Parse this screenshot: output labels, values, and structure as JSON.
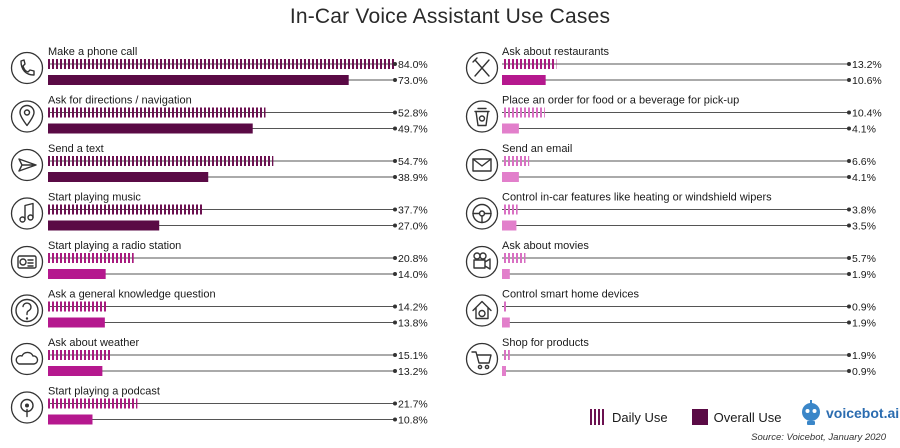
{
  "title": "In-Car Voice Assistant Use Cases",
  "source": "Source: Voicebot, January 2020",
  "logo_text": "voicebot.ai",
  "colors": {
    "daily_dark": "#6b1150",
    "overall_dark": "#5a0a45",
    "daily_mid": "#a81b7e",
    "overall_mid": "#b5188e",
    "daily_light": "#d970c3",
    "overall_light": "#e27fcb",
    "axis": "#555555"
  },
  "chart_data": {
    "type": "bar",
    "title": "In-Car Voice Assistant Use Cases",
    "orientation": "horizontal",
    "series_names": [
      "Daily Use",
      "Overall Use"
    ],
    "legend": "bottom-right",
    "value_suffix": "%",
    "categories": [
      {
        "label": "Make a phone call",
        "icon": "phone-icon",
        "daily": 84.0,
        "overall": 73.0,
        "shade": "dark"
      },
      {
        "label": "Ask for directions / navigation",
        "icon": "location-pin-icon",
        "daily": 52.8,
        "overall": 49.7,
        "shade": "dark"
      },
      {
        "label": "Send a text",
        "icon": "send-icon",
        "daily": 54.7,
        "overall": 38.9,
        "shade": "dark"
      },
      {
        "label": "Start playing music",
        "icon": "music-note-icon",
        "daily": 37.7,
        "overall": 27.0,
        "shade": "dark"
      },
      {
        "label": "Start playing a radio station",
        "icon": "radio-icon",
        "daily": 20.8,
        "overall": 14.0,
        "shade": "mid"
      },
      {
        "label": "Ask a general knowledge question",
        "icon": "question-icon",
        "daily": 14.2,
        "overall": 13.8,
        "shade": "mid"
      },
      {
        "label": "Ask about weather",
        "icon": "cloud-icon",
        "daily": 15.1,
        "overall": 13.2,
        "shade": "mid"
      },
      {
        "label": "Start playing a podcast",
        "icon": "podcast-icon",
        "daily": 21.7,
        "overall": 10.8,
        "shade": "mid"
      },
      {
        "label": "Ask about restaurants",
        "icon": "utensils-icon",
        "daily": 13.2,
        "overall": 10.6,
        "shade": "mid"
      },
      {
        "label": "Place an order for food or a beverage for pick-up",
        "icon": "coffee-cup-icon",
        "daily": 10.4,
        "overall": 4.1,
        "shade": "light"
      },
      {
        "label": "Send an email",
        "icon": "envelope-icon",
        "daily": 6.6,
        "overall": 4.1,
        "shade": "light"
      },
      {
        "label": "Control in-car features like heating or windshield wipers",
        "icon": "steering-wheel-icon",
        "daily": 3.8,
        "overall": 3.5,
        "shade": "light"
      },
      {
        "label": "Ask about movies",
        "icon": "movie-camera-icon",
        "daily": 5.7,
        "overall": 1.9,
        "shade": "light"
      },
      {
        "label": "Control smart home devices",
        "icon": "smart-home-icon",
        "daily": 0.9,
        "overall": 1.9,
        "shade": "light"
      },
      {
        "label": "Shop for products",
        "icon": "shopping-cart-icon",
        "daily": 1.9,
        "overall": 0.9,
        "shade": "light"
      }
    ],
    "value_labels_daily": [
      "84.0%",
      "52.8%",
      "54.7%",
      "37.7%",
      "20.8%",
      "14.2%",
      "15.1%",
      "21.7%",
      "13.2%",
      "10.4%",
      "6.6%",
      "3.8%",
      "5.7%",
      "0.9%",
      "1.9%"
    ],
    "value_labels_overall": [
      "73.0%",
      "49.7%",
      "38.9%",
      "27.0%",
      "14.0%",
      "13.8%",
      "13.2%",
      "10.8%",
      "10.6%",
      "4.1%",
      "4.1%",
      "3.5%",
      "1.9%",
      "1.9%",
      "0.9%"
    ]
  }
}
